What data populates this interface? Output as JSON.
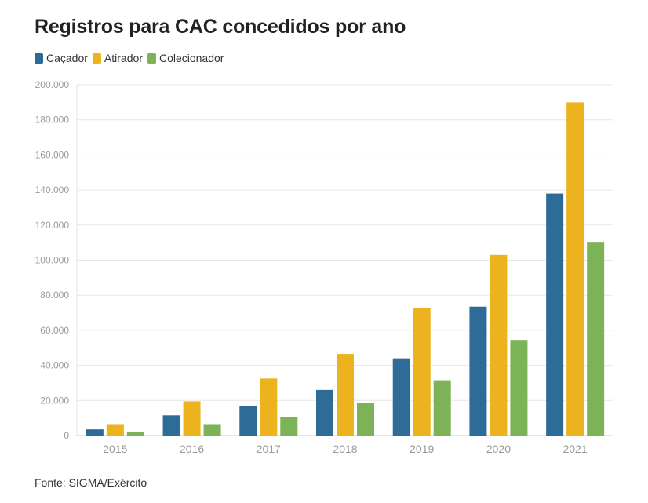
{
  "chart_data": {
    "type": "bar",
    "title": "Registros para CAC concedidos por ano",
    "categories": [
      "2015",
      "2016",
      "2017",
      "2018",
      "2019",
      "2020",
      "2021"
    ],
    "series": [
      {
        "name": "Caçador",
        "color": "#2e6b96",
        "values": [
          3500,
          11500,
          17000,
          26000,
          44000,
          73500,
          138000
        ]
      },
      {
        "name": "Atirador",
        "color": "#ecb31e",
        "values": [
          6500,
          19500,
          32500,
          46500,
          72500,
          103000,
          190000
        ]
      },
      {
        "name": "Colecionador",
        "color": "#7db357",
        "values": [
          1800,
          6500,
          10500,
          18500,
          31500,
          54500,
          110000
        ]
      }
    ],
    "ylim": [
      0,
      200000
    ],
    "yticks": [
      0,
      20000,
      40000,
      60000,
      80000,
      100000,
      120000,
      140000,
      160000,
      180000,
      200000
    ],
    "ytick_labels": [
      "0",
      "20.000",
      "40.000",
      "60.000",
      "80.000",
      "100.000",
      "120.000",
      "140.000",
      "160.000",
      "180.000",
      "200.000"
    ],
    "xlabel": "",
    "ylabel": "",
    "grid": true,
    "legend_position": "top-left"
  },
  "source_text": "Fonte: SIGMA/Exército"
}
